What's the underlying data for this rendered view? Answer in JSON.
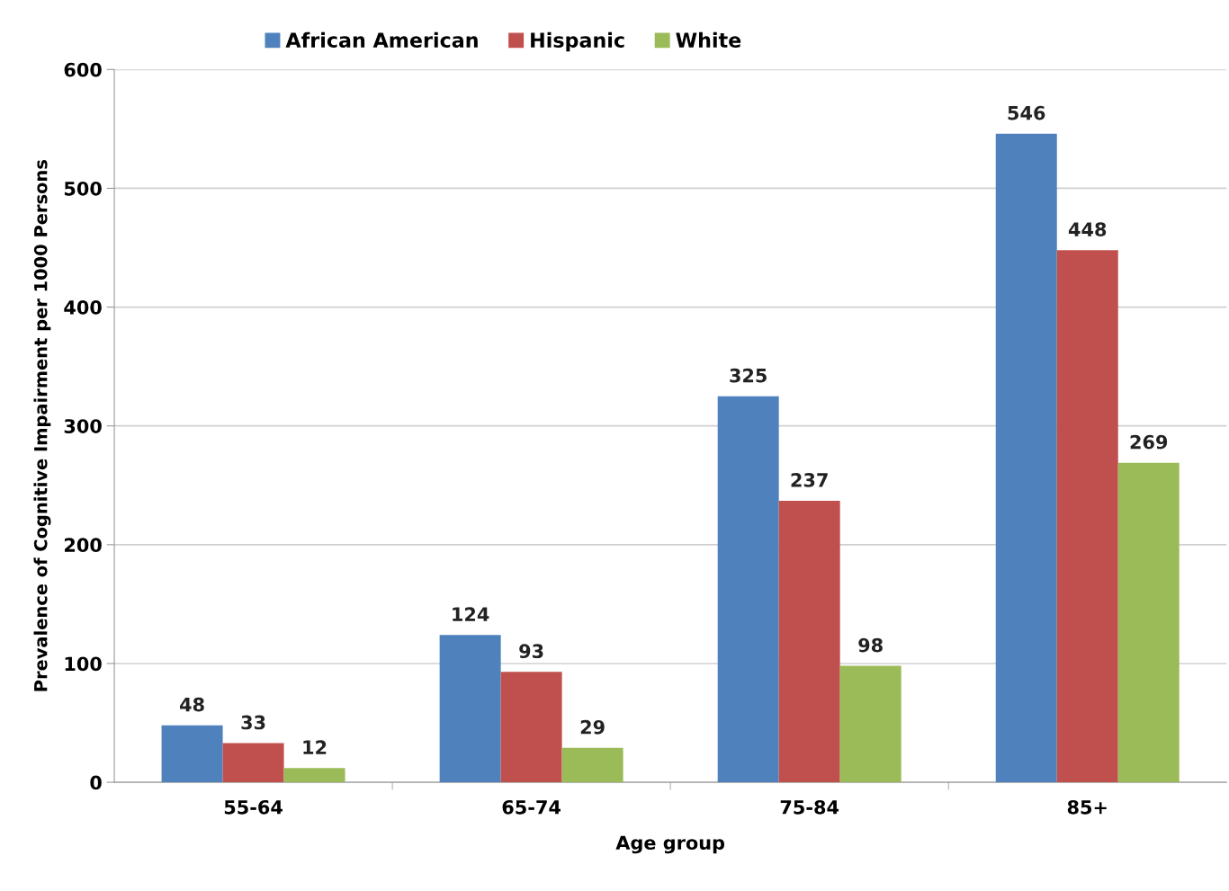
{
  "chart_data": {
    "type": "bar",
    "xlabel": "Age group",
    "ylabel": "Prevalence of Cognitive Impairment per 1000 Persons",
    "categories": [
      "55-64",
      "65-74",
      "75-84",
      "85+"
    ],
    "series": [
      {
        "name": "African American",
        "color": "#4f81bd",
        "values": [
          48,
          124,
          325,
          546
        ]
      },
      {
        "name": "Hispanic",
        "color": "#c0504d",
        "values": [
          33,
          93,
          237,
          448
        ]
      },
      {
        "name": "White",
        "color": "#9bbb59",
        "values": [
          12,
          29,
          98,
          269
        ]
      }
    ],
    "ylim": [
      0,
      600
    ],
    "yticks": [
      0,
      100,
      200,
      300,
      400,
      500,
      600
    ],
    "grid": "y",
    "legend": "top",
    "data_labels": true
  }
}
